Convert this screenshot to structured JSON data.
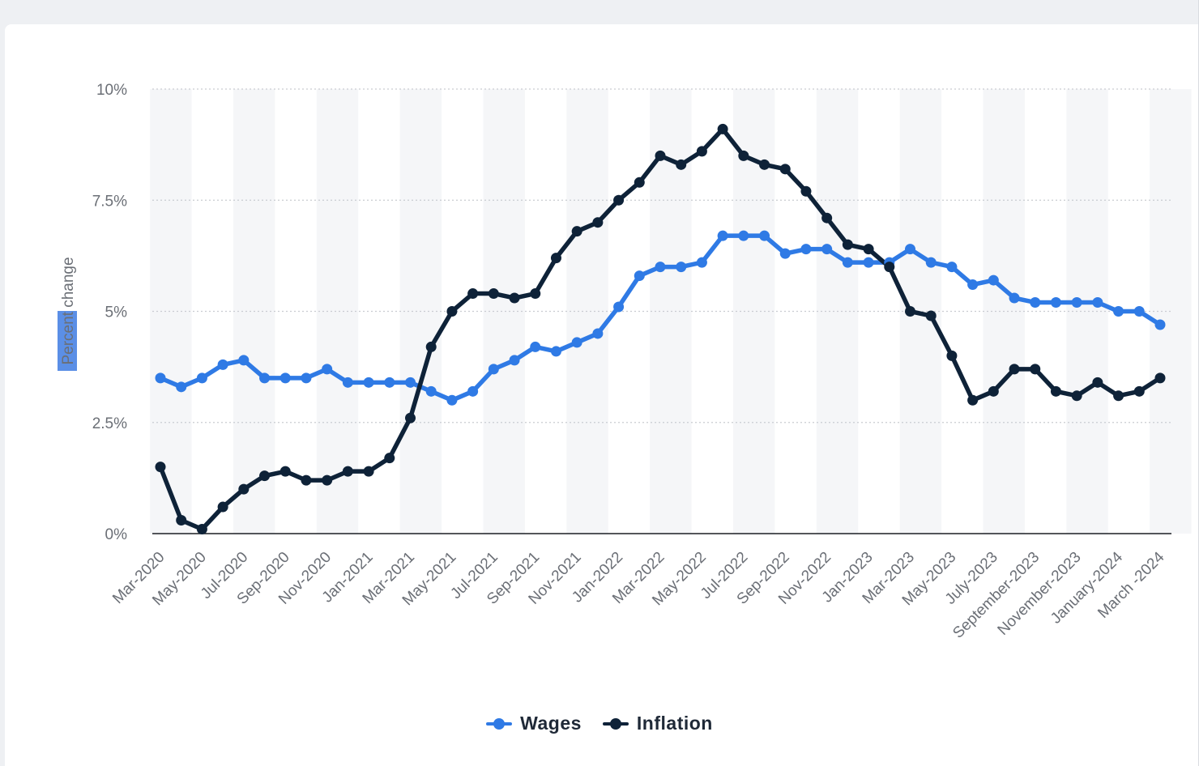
{
  "chart_data": {
    "type": "line",
    "title": "",
    "ylabel": "Percent change",
    "xlabel": "",
    "ylim": [
      0,
      10
    ],
    "yticks": [
      {
        "value": 0,
        "label": "0%"
      },
      {
        "value": 2.5,
        "label": "2.5%"
      },
      {
        "value": 5,
        "label": "5%"
      },
      {
        "value": 7.5,
        "label": "7.5%"
      },
      {
        "value": 10,
        "label": "10%"
      }
    ],
    "grid": true,
    "legend_position": "bottom-center",
    "x": [
      "Mar-2020",
      "Apr-2020",
      "May-2020",
      "Jun-2020",
      "Jul-2020",
      "Aug-2020",
      "Sep-2020",
      "Oct-2020",
      "Nov-2020",
      "Dec-2020",
      "Jan-2021",
      "Feb-2021",
      "Mar-2021",
      "Apr-2021",
      "May-2021",
      "Jun-2021",
      "Jul-2021",
      "Aug-2021",
      "Sep-2021",
      "Oct-2021",
      "Nov-2021",
      "Dec-2021",
      "Jan-2022",
      "Feb-2022",
      "Mar-2022",
      "Apr-2022",
      "May-2022",
      "Jun-2022",
      "Jul-2022",
      "Aug-2022",
      "Sep-2022",
      "Oct-2022",
      "Nov-2022",
      "Dec-2022",
      "Jan-2023",
      "Feb-2023",
      "Mar-2023",
      "Apr-2023",
      "May-2023",
      "June-2023",
      "July-2023",
      "August-2023",
      "September-2023",
      "October-2023",
      "November-2023",
      "December-2023",
      "January-2024",
      "February-2024",
      "March -2024"
    ],
    "x_tick_labels": [
      "Mar-2020",
      "May-2020",
      "Jul-2020",
      "Sep-2020",
      "Nov-2020",
      "Jan-2021",
      "Mar-2021",
      "May-2021",
      "Jul-2021",
      "Sep-2021",
      "Nov-2021",
      "Jan-2022",
      "Mar-2022",
      "May-2022",
      "Jul-2022",
      "Sep-2022",
      "Nov-2022",
      "Jan-2023",
      "Mar-2023",
      "May-2023",
      "July-2023",
      "September-2023",
      "November-2023",
      "January-2024",
      "March -2024"
    ],
    "series": [
      {
        "name": "Wages",
        "color": "#2f7ae5",
        "values": [
          3.5,
          3.3,
          3.5,
          3.8,
          3.9,
          3.5,
          3.5,
          3.5,
          3.7,
          3.4,
          3.4,
          3.4,
          3.4,
          3.2,
          3.0,
          3.2,
          3.7,
          3.9,
          4.2,
          4.1,
          4.3,
          4.5,
          5.1,
          5.8,
          6.0,
          6.0,
          6.1,
          6.7,
          6.7,
          6.7,
          6.3,
          6.4,
          6.4,
          6.1,
          6.1,
          6.1,
          6.4,
          6.1,
          6.0,
          5.6,
          5.7,
          5.3,
          5.2,
          5.2,
          5.2,
          5.2,
          5.0,
          5.0,
          4.7
        ]
      },
      {
        "name": "Inflation",
        "color": "#0e2238",
        "values": [
          1.5,
          0.3,
          0.1,
          0.6,
          1.0,
          1.3,
          1.4,
          1.2,
          1.2,
          1.4,
          1.4,
          1.7,
          2.6,
          4.2,
          5.0,
          5.4,
          5.4,
          5.3,
          5.4,
          6.2,
          6.8,
          7.0,
          7.5,
          7.9,
          8.5,
          8.3,
          8.6,
          9.1,
          8.5,
          8.3,
          8.2,
          7.7,
          7.1,
          6.5,
          6.4,
          6.0,
          5.0,
          4.9,
          4.0,
          3.0,
          3.2,
          3.7,
          3.7,
          3.2,
          3.1,
          3.4,
          3.1,
          3.2,
          3.5
        ]
      }
    ]
  }
}
